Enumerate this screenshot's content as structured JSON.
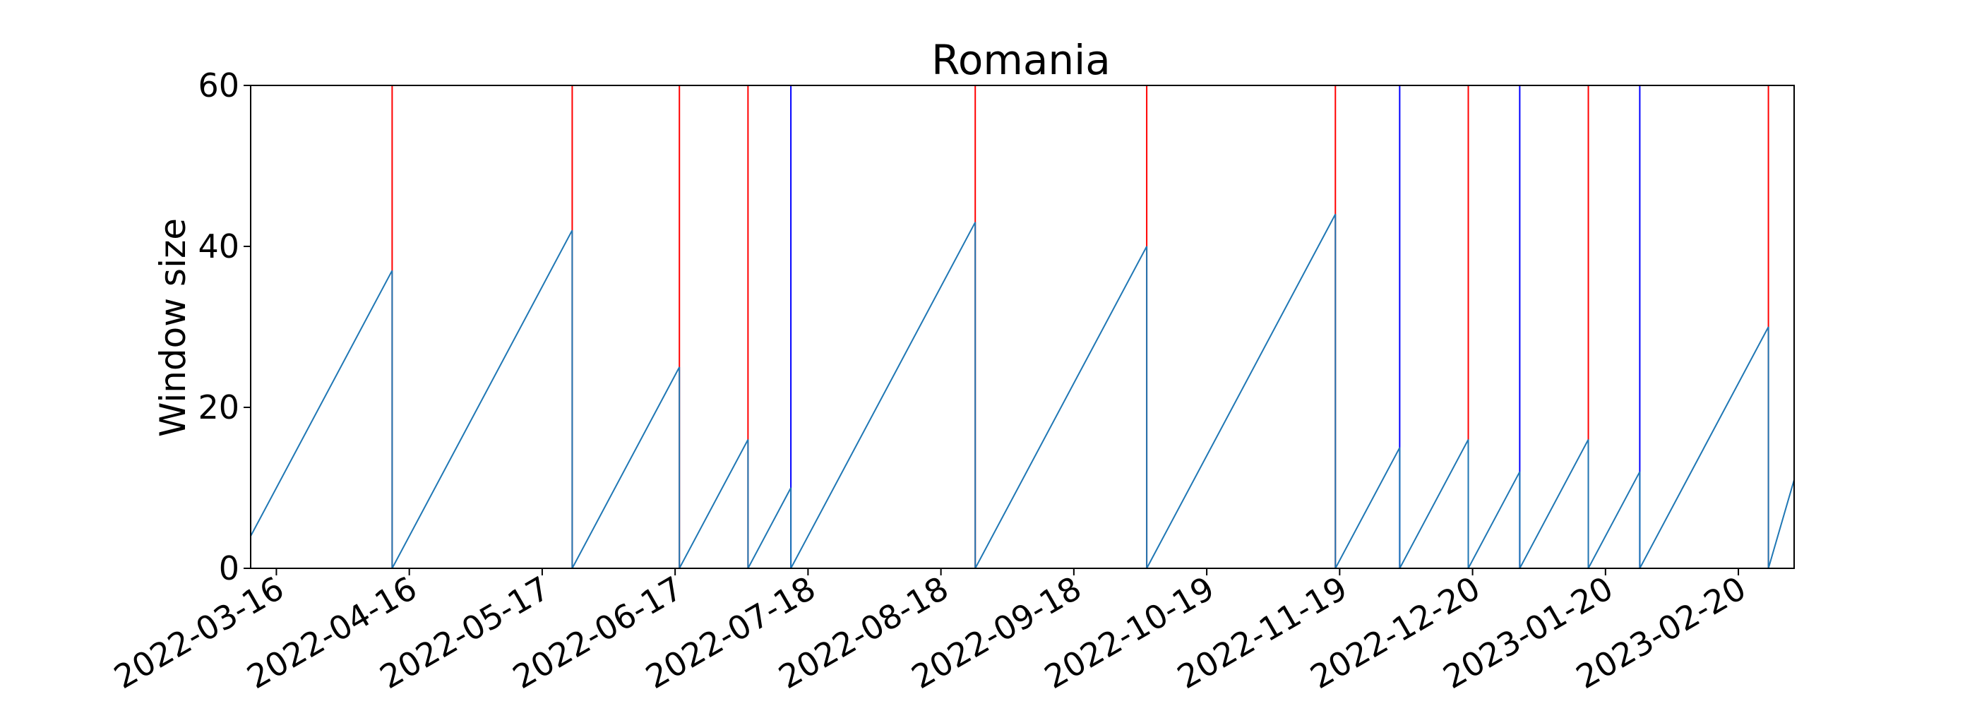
{
  "chart_data": {
    "type": "line",
    "title": "Romania",
    "xlabel": "",
    "ylabel": "Window size",
    "grid": false,
    "xlim": [
      "2022-03-10",
      "2023-03-05"
    ],
    "ylim": [
      0,
      60
    ],
    "y_ticks": [
      0,
      20,
      40,
      60
    ],
    "x_ticks": [
      "2022-03-16",
      "2022-04-16",
      "2022-05-17",
      "2022-06-17",
      "2022-07-18",
      "2022-08-18",
      "2022-09-18",
      "2022-10-19",
      "2022-11-19",
      "2022-12-20",
      "2023-01-20",
      "2023-02-20"
    ],
    "series": [
      {
        "color": "#1f77b4",
        "points": [
          [
            "2022-03-10",
            4
          ],
          [
            "2022-04-12",
            37
          ],
          [
            "2022-04-12",
            0
          ],
          [
            "2022-05-24",
            42
          ],
          [
            "2022-05-24",
            0
          ],
          [
            "2022-06-18",
            25
          ],
          [
            "2022-06-18",
            0
          ],
          [
            "2022-07-04",
            16
          ],
          [
            "2022-07-04",
            0
          ],
          [
            "2022-07-14",
            10
          ],
          [
            "2022-07-14",
            0
          ],
          [
            "2022-08-26",
            43
          ],
          [
            "2022-08-26",
            0
          ],
          [
            "2022-10-05",
            40
          ],
          [
            "2022-10-05",
            0
          ],
          [
            "2022-11-18",
            44
          ],
          [
            "2022-11-18",
            0
          ],
          [
            "2022-12-03",
            15
          ],
          [
            "2022-12-03",
            0
          ],
          [
            "2022-12-19",
            16
          ],
          [
            "2022-12-19",
            0
          ],
          [
            "2022-12-31",
            12
          ],
          [
            "2022-12-31",
            0
          ],
          [
            "2023-01-16",
            16
          ],
          [
            "2023-01-16",
            0
          ],
          [
            "2023-01-28",
            12
          ],
          [
            "2023-01-28",
            0
          ],
          [
            "2023-02-27",
            30
          ],
          [
            "2023-02-27",
            0
          ],
          [
            "2023-03-05",
            11
          ],
          [
            "2023-03-05",
            0
          ]
        ]
      }
    ],
    "vertical_lines": [
      {
        "x": "2022-04-12",
        "color": "#ff0000"
      },
      {
        "x": "2022-05-24",
        "color": "#ff0000"
      },
      {
        "x": "2022-06-18",
        "color": "#ff0000"
      },
      {
        "x": "2022-07-04",
        "color": "#ff0000"
      },
      {
        "x": "2022-07-14",
        "color": "#0000ff"
      },
      {
        "x": "2022-08-26",
        "color": "#ff0000"
      },
      {
        "x": "2022-10-05",
        "color": "#ff0000"
      },
      {
        "x": "2022-11-18",
        "color": "#ff0000"
      },
      {
        "x": "2022-12-03",
        "color": "#0000ff"
      },
      {
        "x": "2022-12-19",
        "color": "#ff0000"
      },
      {
        "x": "2022-12-31",
        "color": "#0000ff"
      },
      {
        "x": "2023-01-16",
        "color": "#ff0000"
      },
      {
        "x": "2023-01-28",
        "color": "#0000ff"
      },
      {
        "x": "2023-02-27",
        "color": "#ff0000"
      },
      {
        "x": "2023-03-05",
        "color": "#0000ff"
      }
    ]
  }
}
